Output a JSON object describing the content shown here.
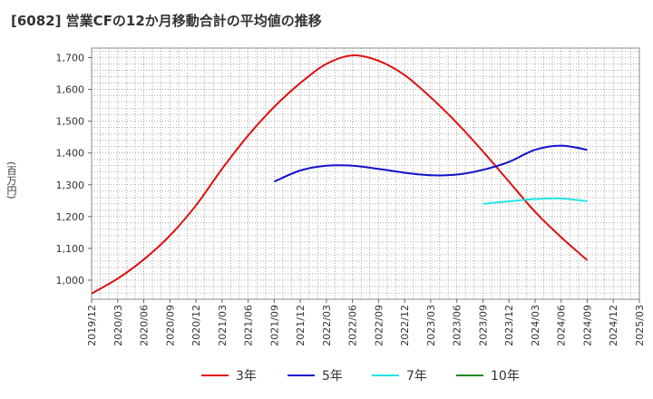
{
  "chart_data": {
    "type": "line",
    "title": "[6082]  営業CFの12か月移動合計の平均値の推移",
    "ylabel": "(百万円)",
    "xlabel": "",
    "ylim": [
      940,
      1730
    ],
    "yticks": [
      1000,
      1100,
      1200,
      1300,
      1400,
      1500,
      1600,
      1700
    ],
    "ytick_labels": [
      "1,000",
      "1,100",
      "1,200",
      "1,300",
      "1,400",
      "1,500",
      "1,600",
      "1,700"
    ],
    "xtick_labels": [
      "2019/12",
      "2020/03",
      "2020/06",
      "2020/09",
      "2020/12",
      "2021/03",
      "2021/06",
      "2021/09",
      "2021/12",
      "2022/03",
      "2022/06",
      "2022/09",
      "2022/12",
      "2023/03",
      "2023/06",
      "2023/09",
      "2023/12",
      "2024/03",
      "2024/06",
      "2024/09",
      "2024/12",
      "2025/03"
    ],
    "grid": true,
    "legend_position": "bottom",
    "series": [
      {
        "name": "3年",
        "color": "#dd1111",
        "points": [
          [
            "2019/12",
            958
          ],
          [
            "2020/03",
            1005
          ],
          [
            "2020/06",
            1065
          ],
          [
            "2020/09",
            1140
          ],
          [
            "2020/12",
            1235
          ],
          [
            "2021/03",
            1350
          ],
          [
            "2021/06",
            1455
          ],
          [
            "2021/09",
            1545
          ],
          [
            "2021/12",
            1620
          ],
          [
            "2022/03",
            1680
          ],
          [
            "2022/06",
            1707
          ],
          [
            "2022/09",
            1690
          ],
          [
            "2022/12",
            1645
          ],
          [
            "2023/03",
            1575
          ],
          [
            "2023/06",
            1495
          ],
          [
            "2023/09",
            1405
          ],
          [
            "2023/12",
            1310
          ],
          [
            "2024/03",
            1215
          ],
          [
            "2024/06",
            1135
          ],
          [
            "2024/09",
            1063
          ]
        ]
      },
      {
        "name": "5年",
        "color": "#1111cc",
        "points": [
          [
            "2021/09",
            1310
          ],
          [
            "2021/12",
            1345
          ],
          [
            "2022/03",
            1360
          ],
          [
            "2022/06",
            1360
          ],
          [
            "2022/09",
            1350
          ],
          [
            "2022/12",
            1338
          ],
          [
            "2023/03",
            1330
          ],
          [
            "2023/06",
            1332
          ],
          [
            "2023/09",
            1347
          ],
          [
            "2023/12",
            1372
          ],
          [
            "2024/03",
            1410
          ],
          [
            "2024/06",
            1423
          ],
          [
            "2024/09",
            1410
          ]
        ]
      },
      {
        "name": "7年",
        "color": "#22e5e5",
        "points": [
          [
            "2023/09",
            1240
          ],
          [
            "2023/12",
            1248
          ],
          [
            "2024/03",
            1255
          ],
          [
            "2024/06",
            1257
          ],
          [
            "2024/09",
            1248
          ]
        ]
      },
      {
        "name": "10年",
        "color": "#228822",
        "points": []
      }
    ]
  }
}
